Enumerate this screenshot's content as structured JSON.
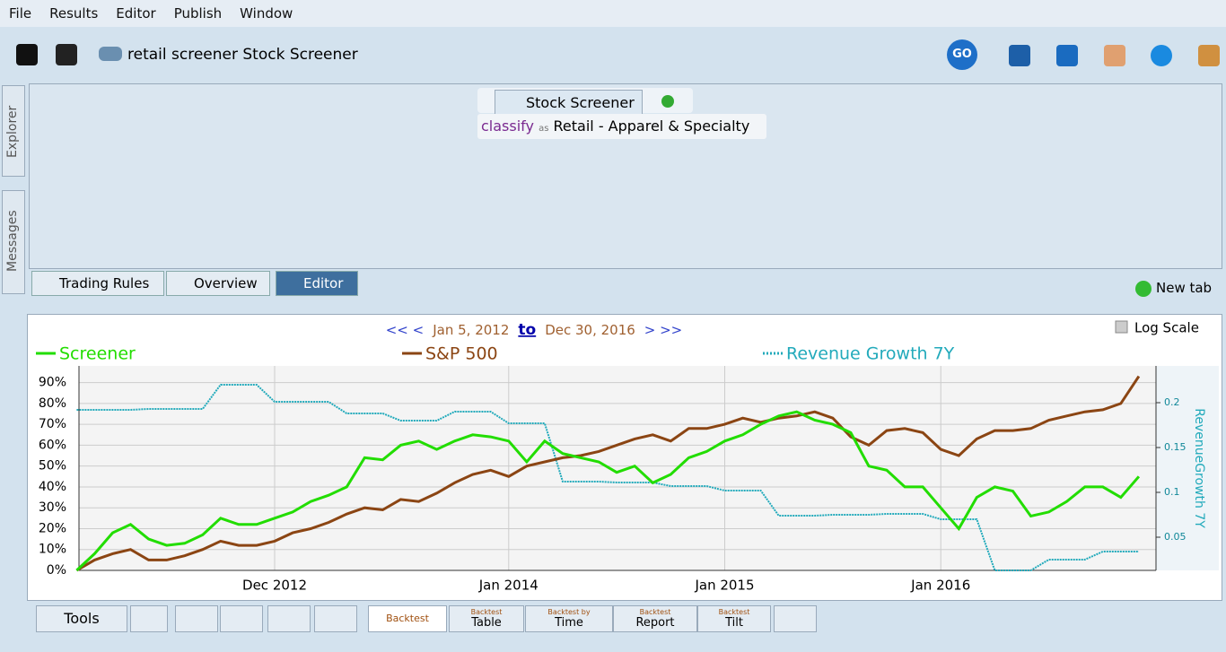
{
  "menu": [
    "File",
    "Results",
    "Editor",
    "Publish",
    "Window"
  ],
  "toolbar": {
    "title": "retail screener Stock Screener",
    "go": "GO"
  },
  "side_tabs": [
    "Explorer",
    "Messages"
  ],
  "editor": {
    "tab": "Stock Screener",
    "rule": {
      "keyword": "classify",
      "op": "as",
      "value": "Retail - Apparel & Specialty"
    }
  },
  "view_tabs": [
    "Trading Rules",
    "Overview",
    "Editor"
  ],
  "new_tab": "New tab",
  "chart_data": {
    "type": "line",
    "nav": {
      "prev": "<< <",
      "start": "Jan 5, 2012",
      "to": "to",
      "end": "Dec 30, 2016",
      "next": "> >>"
    },
    "log_scale_label": "Log Scale",
    "log_scale": false,
    "grid": true,
    "y2label": "RevenueGrowth 7Y",
    "x": [
      "2012-01",
      "2012-02",
      "2012-03",
      "2012-04",
      "2012-05",
      "2012-06",
      "2012-07",
      "2012-08",
      "2012-09",
      "2012-10",
      "2012-11",
      "2012-12",
      "2013-01",
      "2013-02",
      "2013-03",
      "2013-04",
      "2013-05",
      "2013-06",
      "2013-07",
      "2013-08",
      "2013-09",
      "2013-10",
      "2013-11",
      "2013-12",
      "2014-01",
      "2014-02",
      "2014-03",
      "2014-04",
      "2014-05",
      "2014-06",
      "2014-07",
      "2014-08",
      "2014-09",
      "2014-10",
      "2014-11",
      "2014-12",
      "2015-01",
      "2015-02",
      "2015-03",
      "2015-04",
      "2015-05",
      "2015-06",
      "2015-07",
      "2015-08",
      "2015-09",
      "2015-10",
      "2015-11",
      "2015-12",
      "2016-01",
      "2016-02",
      "2016-03",
      "2016-04",
      "2016-05",
      "2016-06",
      "2016-07",
      "2016-08",
      "2016-09",
      "2016-10",
      "2016-11",
      "2016-12"
    ],
    "xlim": [
      "2012-01-05",
      "2016-12-30"
    ],
    "xticks": [
      {
        "value": "2012-12",
        "label": "Dec 2012"
      },
      {
        "value": "2014-01",
        "label": "Jan 2014"
      },
      {
        "value": "2015-01",
        "label": "Jan 2015"
      },
      {
        "value": "2016-01",
        "label": "Jan 2016"
      }
    ],
    "ylim": [
      0,
      98
    ],
    "yticks": [
      {
        "value": 0,
        "label": "0%"
      },
      {
        "value": 10,
        "label": "10%"
      },
      {
        "value": 20,
        "label": "20%"
      },
      {
        "value": 30,
        "label": "30%"
      },
      {
        "value": 40,
        "label": "40%"
      },
      {
        "value": 50,
        "label": "50%"
      },
      {
        "value": 60,
        "label": "60%"
      },
      {
        "value": 70,
        "label": "70%"
      },
      {
        "value": 80,
        "label": "80%"
      },
      {
        "value": 90,
        "label": "90%"
      }
    ],
    "y2lim": [
      0.013,
      0.241
    ],
    "y2ticks": [
      0.05,
      0.1,
      0.15,
      0.2
    ],
    "series": [
      {
        "name": "Screener",
        "color": "#22dd00",
        "values": [
          0,
          8,
          18,
          22,
          15,
          12,
          13,
          17,
          25,
          22,
          22,
          25,
          28,
          33,
          36,
          40,
          54,
          53,
          60,
          62,
          58,
          62,
          65,
          64,
          62,
          52,
          62,
          56,
          54,
          52,
          47,
          50,
          42,
          46,
          54,
          57,
          62,
          65,
          70,
          74,
          76,
          72,
          70,
          66,
          50,
          48,
          40,
          40,
          30,
          20,
          35,
          40,
          38,
          26,
          28,
          33,
          40,
          40,
          35,
          45
        ]
      },
      {
        "name": "S&P 500",
        "color": "#8b4513",
        "values": [
          0,
          5,
          8,
          10,
          5,
          5,
          7,
          10,
          14,
          12,
          12,
          14,
          18,
          20,
          23,
          27,
          30,
          29,
          34,
          33,
          37,
          42,
          46,
          48,
          45,
          50,
          52,
          54,
          55,
          57,
          60,
          63,
          65,
          62,
          68,
          68,
          70,
          73,
          71,
          73,
          74,
          76,
          73,
          64,
          60,
          67,
          68,
          66,
          58,
          55,
          63,
          67,
          67,
          68,
          72,
          74,
          76,
          77,
          80,
          93
        ]
      },
      {
        "name": "Revenue Growth 7Y",
        "color": "#22aabb",
        "axis": "y2",
        "dotted": true,
        "values": [
          0.192,
          0.192,
          0.192,
          0.192,
          0.193,
          0.193,
          0.193,
          0.193,
          0.22,
          0.22,
          0.22,
          0.201,
          0.201,
          0.201,
          0.201,
          0.188,
          0.188,
          0.188,
          0.18,
          0.18,
          0.18,
          0.19,
          0.19,
          0.19,
          0.177,
          0.177,
          0.177,
          0.112,
          0.112,
          0.112,
          0.111,
          0.111,
          0.111,
          0.107,
          0.107,
          0.107,
          0.102,
          0.102,
          0.102,
          0.074,
          0.074,
          0.074,
          0.075,
          0.075,
          0.075,
          0.076,
          0.076,
          0.076,
          0.07,
          0.07,
          0.07,
          0.013,
          0.013,
          0.013,
          0.025,
          0.025,
          0.025,
          0.034,
          0.034,
          0.034
        ]
      }
    ]
  },
  "bottom_tabs": [
    {
      "label": "Tools"
    },
    {
      "label": "Backtest"
    },
    {
      "small": "Backtest",
      "label": "Table"
    },
    {
      "small": "Backtest by",
      "label": "Time"
    },
    {
      "small": "Backtest",
      "label": "Report"
    },
    {
      "small": "Backtest",
      "label": "Tilt"
    }
  ]
}
